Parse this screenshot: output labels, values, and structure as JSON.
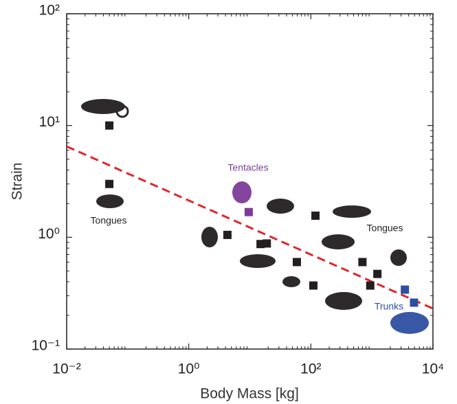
{
  "chart_data": {
    "type": "scatter",
    "xlabel": "Body Mass [kg]",
    "ylabel": "Strain",
    "xscale": "log",
    "yscale": "log",
    "xlim": [
      0.01,
      10000
    ],
    "ylim": [
      0.1,
      100
    ],
    "xticks": [
      {
        "value": 0.01,
        "label": "10⁻²"
      },
      {
        "value": 1,
        "label": "10⁰"
      },
      {
        "value": 100,
        "label": "10²"
      },
      {
        "value": 10000,
        "label": "10⁴"
      }
    ],
    "yticks": [
      {
        "value": 0.1,
        "label": "10⁻¹"
      },
      {
        "value": 1,
        "label": "10⁰"
      },
      {
        "value": 10,
        "label": "10¹"
      },
      {
        "value": 100,
        "label": "10²"
      }
    ],
    "series": [
      {
        "color": "#231f20",
        "x": [
          0.05,
          0.05,
          4.3,
          15,
          19,
          119,
          59,
          110,
          700,
          1230,
          940
        ],
        "values": [
          10,
          3,
          1.05,
          0.87,
          0.88,
          1.56,
          0.6,
          0.37,
          0.6,
          0.47,
          0.37
        ]
      },
      {
        "color": "#7d3c98",
        "x": [
          9.6
        ],
        "values": [
          1.68
        ]
      },
      {
        "color": "#2e4fa0",
        "x": [
          3470,
          4900
        ],
        "values": [
          0.34,
          0.26
        ]
      }
    ],
    "fit": {
      "color": "#e0262b",
      "x": [
        0.01,
        10000
      ],
      "values": [
        6.5,
        0.23
      ]
    },
    "annotations": [
      {
        "text": "Tongues",
        "color": "#231f20"
      },
      {
        "text": "Tentacles",
        "color": "#7d3c98"
      },
      {
        "text": "Tongues",
        "color": "#231f20"
      },
      {
        "text": "Trunks",
        "color": "#2e4fa0"
      }
    ]
  }
}
